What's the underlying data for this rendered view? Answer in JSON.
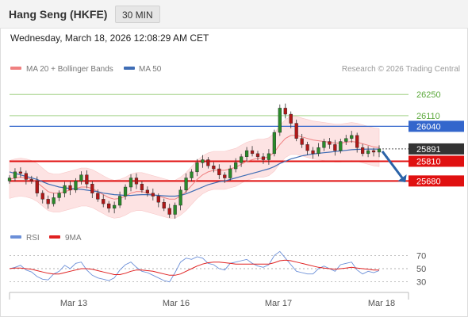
{
  "header": {
    "title": "Hang Seng (HKFE)",
    "timeframe": "30 MIN"
  },
  "datetime": "Wednesday, March 18, 2026 12:08:29 AM CET",
  "legend": {
    "ma20": "MA 20 + Bollinger Bands",
    "ma50": "MA 50",
    "credit": "Research © 2026 Trading Central"
  },
  "rsi_legend": {
    "rsi": "RSI",
    "ma": "9MA"
  },
  "colors": {
    "ma20": "#f08080",
    "ma50": "#3f6db5",
    "band_fill": "#fde3e3",
    "level_red": "#e01010",
    "level_blue": "#3366cc",
    "level_green": "#8dc86b",
    "candle_up": "#2a8a2a",
    "candle_down": "#b01818",
    "last_price": "#333333",
    "arrow": "#2a63a8",
    "rsi_line": "#6b8fd8",
    "rsi_ma": "#e02020"
  },
  "chart_data": {
    "type": "candlestick",
    "y_range": [
      25400,
      26350
    ],
    "x_labels": [
      "Mar 13",
      "Mar 16",
      "Mar 17",
      "Mar 18"
    ],
    "levels": [
      {
        "value": 26250,
        "label": "26250",
        "kind": "target"
      },
      {
        "value": 26110,
        "label": "26110",
        "kind": "target"
      },
      {
        "value": 26040,
        "label": "26040",
        "kind": "pivot"
      },
      {
        "value": 25891,
        "label": "25891",
        "kind": "last"
      },
      {
        "value": 25810,
        "label": "25810",
        "kind": "support"
      },
      {
        "value": 25680,
        "label": "25680",
        "kind": "support"
      }
    ],
    "closes": [
      25700,
      25740,
      25730,
      25690,
      25680,
      25600,
      25560,
      25530,
      25570,
      25600,
      25650,
      25620,
      25680,
      25720,
      25660,
      25600,
      25560,
      25530,
      25500,
      25520,
      25580,
      25640,
      25700,
      25660,
      25620,
      25600,
      25580,
      25540,
      25500,
      25460,
      25520,
      25620,
      25700,
      25740,
      25800,
      25820,
      25780,
      25760,
      25720,
      25700,
      25760,
      25800,
      25840,
      25880,
      25860,
      25840,
      25820,
      25860,
      26000,
      26160,
      26120,
      26060,
      25960,
      25920,
      25880,
      25860,
      25900,
      25940,
      25920,
      25880,
      25940,
      25960,
      25980,
      25900,
      25860,
      25880,
      25870,
      25891
    ],
    "ma20": [
      25690,
      25700,
      25705,
      25700,
      25690,
      25670,
      25640,
      25610,
      25600,
      25600,
      25610,
      25620,
      25630,
      25640,
      25640,
      25630,
      25610,
      25590,
      25570,
      25560,
      25565,
      25580,
      25600,
      25610,
      25610,
      25600,
      25590,
      25580,
      25570,
      25560,
      25560,
      25580,
      25610,
      25650,
      25690,
      25720,
      25740,
      25750,
      25750,
      25750,
      25760,
      25770,
      25790,
      25810,
      25820,
      25830,
      25830,
      25840,
      25870,
      25920,
      25960,
      25980,
      25980,
      25970,
      25960,
      25950,
      25945,
      25940,
      25935,
      25930,
      25930,
      25935,
      25940,
      25935,
      25925,
      25915,
      25905,
      25900
    ],
    "ma50": [
      25740,
      25730,
      25720,
      25710,
      25700,
      25690,
      25675,
      25660,
      25650,
      25640,
      25635,
      25630,
      25628,
      25625,
      25620,
      25615,
      25610,
      25600,
      25595,
      25590,
      25588,
      25585,
      25585,
      25588,
      25590,
      25590,
      25588,
      25585,
      25582,
      25580,
      25580,
      25585,
      25595,
      25610,
      25625,
      25640,
      25655,
      25665,
      25675,
      25680,
      25690,
      25700,
      25710,
      25720,
      25730,
      25740,
      25750,
      25760,
      25775,
      25795,
      25810,
      25825,
      25835,
      25845,
      25852,
      25858,
      25862,
      25866,
      25870,
      25874,
      25878,
      25882,
      25886,
      25888,
      25889,
      25890,
      25890,
      25890
    ],
    "bb_width": 125,
    "rsi": {
      "ticks": [
        70,
        50,
        30
      ],
      "y_range": [
        20,
        80
      ],
      "values": [
        50,
        52,
        55,
        48,
        45,
        38,
        34,
        33,
        42,
        46,
        55,
        50,
        58,
        60,
        48,
        40,
        36,
        34,
        32,
        36,
        48,
        56,
        60,
        52,
        46,
        44,
        40,
        36,
        32,
        30,
        44,
        60,
        66,
        64,
        68,
        66,
        58,
        56,
        50,
        48,
        58,
        60,
        62,
        64,
        58,
        54,
        52,
        56,
        70,
        76,
        66,
        56,
        46,
        44,
        42,
        42,
        50,
        54,
        50,
        46,
        56,
        58,
        60,
        48,
        42,
        46,
        44,
        47
      ],
      "ma9": [
        50,
        51,
        51,
        50,
        49,
        47,
        45,
        43,
        42,
        42,
        44,
        46,
        48,
        50,
        50,
        49,
        47,
        45,
        43,
        41,
        41,
        43,
        46,
        48,
        48,
        47,
        46,
        44,
        42,
        40,
        40,
        42,
        46,
        50,
        54,
        57,
        59,
        60,
        60,
        59,
        58,
        57,
        57,
        57,
        57,
        57,
        57,
        57,
        59,
        62,
        63,
        62,
        60,
        58,
        56,
        54,
        52,
        51,
        50,
        49,
        50,
        51,
        52,
        51,
        50,
        49,
        48,
        48
      ]
    }
  }
}
